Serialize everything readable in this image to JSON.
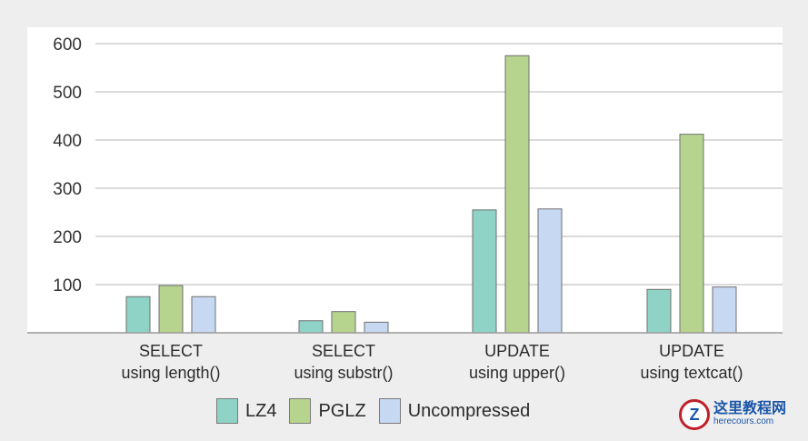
{
  "chart_data": {
    "type": "bar",
    "categories": [
      [
        "SELECT",
        "using length()"
      ],
      [
        "SELECT",
        "using substr()"
      ],
      [
        "UPDATE",
        "using upper()"
      ],
      [
        "UPDATE",
        "using textcat()"
      ]
    ],
    "series": [
      {
        "name": "LZ4",
        "color": "#8fd3c7",
        "values": [
          75,
          25,
          255,
          90
        ]
      },
      {
        "name": "PGLZ",
        "color": "#b7d48f",
        "values": [
          98,
          44,
          575,
          412
        ]
      },
      {
        "name": "Uncompressed",
        "color": "#c7d8f2",
        "values": [
          75,
          22,
          257,
          95
        ]
      }
    ],
    "yticks": [
      100,
      200,
      300,
      400,
      500,
      600
    ],
    "ylim": [
      0,
      600
    ],
    "grid": true,
    "legend_position": "bottom"
  },
  "watermark": {
    "title": "这里教程网",
    "url": "herecours.com",
    "logo_letter": "Z"
  }
}
